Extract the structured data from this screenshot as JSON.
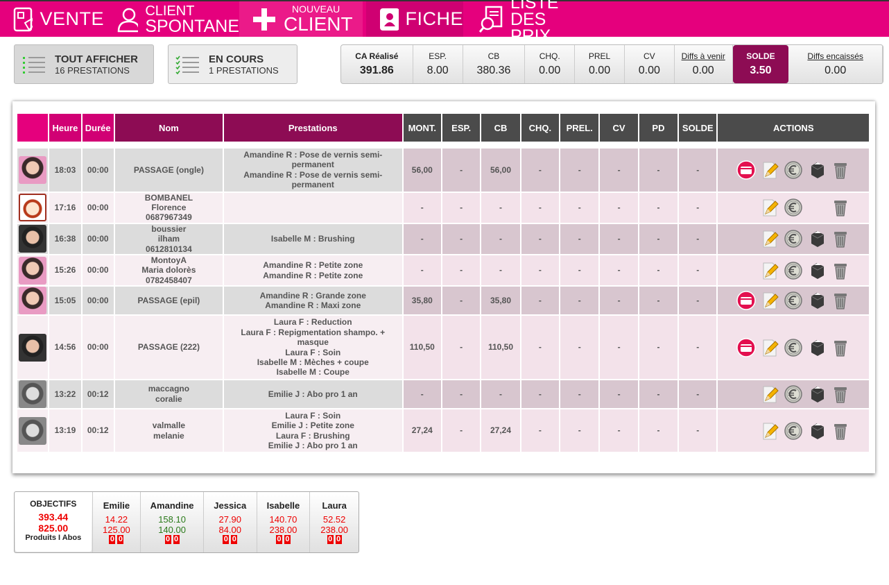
{
  "nav": {
    "vente": "VENTE",
    "client_spontane": [
      "CLIENT",
      "SPONTANE"
    ],
    "nouveau_client": [
      "NOUVEAU",
      "CLIENT"
    ],
    "fiche": "FICHE",
    "liste_des_prix": [
      "LISTE",
      "DES PRIX"
    ]
  },
  "filters": [
    {
      "title": "TOUT AFFICHER",
      "count": "16 PRESTATIONS"
    },
    {
      "title": "EN COURS",
      "count": "1 PRESTATIONS"
    }
  ],
  "summary": [
    {
      "label": "CA Réalisé",
      "value": "391.86"
    },
    {
      "label": "ESP.",
      "value": "8.00"
    },
    {
      "label": "CB",
      "value": "380.36"
    },
    {
      "label": "CHQ.",
      "value": "0.00"
    },
    {
      "label": "PREL",
      "value": "0.00"
    },
    {
      "label": "CV",
      "value": "0.00"
    },
    {
      "label": "Diffs à venir",
      "value": "0.00"
    },
    {
      "label": "SOLDE",
      "value": "3.50"
    },
    {
      "label": "Diffs encaissés",
      "value": "0.00"
    }
  ],
  "table": {
    "headers": [
      "Heure",
      "Durée",
      "Nom",
      "Prestations",
      "MONT.",
      "ESP.",
      "CB",
      "CHQ.",
      "PREL.",
      "CV",
      "PD",
      "SOLDE",
      "ACTIONS"
    ],
    "rows": [
      {
        "heure": "18:03",
        "duree": "00:00",
        "nom": [
          "PASSAGE (ongle)"
        ],
        "prestations": [
          "Amandine R : Pose de vernis semi-permanent",
          "Amandine R : Pose de vernis semi-permanent"
        ],
        "amounts": [
          "56,00",
          "-",
          "56,00",
          "-",
          "-",
          "-",
          "-",
          "-"
        ]
      },
      {
        "heure": "17:16",
        "duree": "00:00",
        "nom": [
          "BOMBANEL",
          "Florence",
          "0687967349"
        ],
        "prestations": [],
        "amounts": [
          "-",
          "-",
          "-",
          "-",
          "-",
          "-",
          "-",
          "-"
        ]
      },
      {
        "heure": "16:38",
        "duree": "00:00",
        "nom": [
          "boussier",
          "ilham",
          "0612810134"
        ],
        "prestations": [
          "Isabelle M : Brushing"
        ],
        "amounts": [
          "-",
          "-",
          "-",
          "-",
          "-",
          "-",
          "-",
          "-"
        ]
      },
      {
        "heure": "15:26",
        "duree": "00:00",
        "nom": [
          "MontoyA",
          "Maria dolorès",
          "0782458407"
        ],
        "prestations": [
          "Amandine R : Petite zone",
          "Amandine R : Petite zone"
        ],
        "amounts": [
          "-",
          "-",
          "-",
          "-",
          "-",
          "-",
          "-",
          "-"
        ]
      },
      {
        "heure": "15:05",
        "duree": "00:00",
        "nom": [
          "PASSAGE (epil)"
        ],
        "prestations": [
          "Amandine R : Grande zone",
          "Amandine R : Maxi zone"
        ],
        "amounts": [
          "35,80",
          "-",
          "35,80",
          "-",
          "-",
          "-",
          "-",
          "-"
        ]
      },
      {
        "heure": "14:56",
        "duree": "00:00",
        "nom": [
          "PASSAGE (222)"
        ],
        "prestations": [
          "Laura F : Reduction",
          "Laura F : Repigmentation shampo. + masque",
          "Laura F : Soin",
          "Isabelle M : Mèches + coupe",
          "Isabelle M : Coupe"
        ],
        "amounts": [
          "110,50",
          "-",
          "110,50",
          "-",
          "-",
          "-",
          "-",
          "-"
        ]
      },
      {
        "heure": "13:22",
        "duree": "00:12",
        "nom": [
          "maccagno",
          "coralie"
        ],
        "prestations": [
          "Emilie J : Abo pro 1 an"
        ],
        "amounts": [
          "-",
          "-",
          "-",
          "-",
          "-",
          "-",
          "-",
          "-"
        ]
      },
      {
        "heure": "13:19",
        "duree": "00:12",
        "nom": [
          "valmalle",
          "melanie"
        ],
        "prestations": [
          "Laura F : Soin",
          "Emilie J : Petite zone",
          "Laura F : Brushing",
          "Emilie J : Abo pro 1 an"
        ],
        "amounts": [
          "27,24",
          "-",
          "27,24",
          "-",
          "-",
          "-",
          "-",
          "-"
        ]
      }
    ]
  },
  "objectives": {
    "title": "OBJECTIFS",
    "total_1": "393.44",
    "total_2": "825.00",
    "legend": "Produits I Abos",
    "staff": [
      {
        "name": "Emilie",
        "value_1": "14.22",
        "value_2": "125.00",
        "badges": [
          "0",
          "0"
        ]
      },
      {
        "name": "Amandine",
        "value_1": "158.10",
        "value_2": "140.00",
        "badges": [
          "0",
          "0"
        ]
      },
      {
        "name": "Jessica",
        "value_1": "27.90",
        "value_2": "84.00",
        "badges": [
          "0",
          "0"
        ]
      },
      {
        "name": "Isabelle",
        "value_1": "140.70",
        "value_2": "238.00",
        "badges": [
          "0",
          "0"
        ]
      },
      {
        "name": "Laura",
        "value_1": "52.52",
        "value_2": "238.00",
        "badges": [
          "0",
          "0"
        ]
      }
    ]
  }
}
